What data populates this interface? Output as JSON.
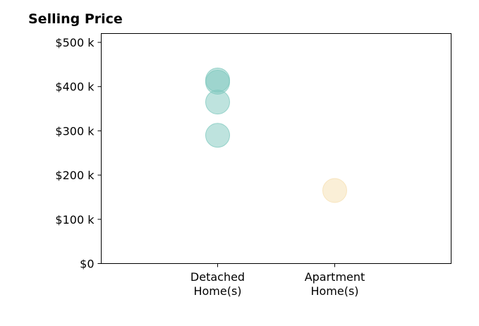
{
  "chart_data": {
    "type": "scatter",
    "title": "Selling Price",
    "xlabel": "",
    "ylabel": "",
    "categories": [
      "Detached\nHome(s)",
      "Apartment\nHome(s)"
    ],
    "y_ticks": [
      "$0",
      "$100 k",
      "$200 k",
      "$300 k",
      "$400 k",
      "$500 k"
    ],
    "ylim": [
      0,
      520000
    ],
    "grid": false,
    "legend": "none",
    "series": [
      {
        "category": "Detached\nHome(s)",
        "color": "#7ec8bd",
        "values": [
          290000,
          365000,
          410000,
          415000
        ]
      },
      {
        "category": "Apartment\nHome(s)",
        "color": "#f5dfb0",
        "values": [
          165000
        ]
      }
    ]
  }
}
